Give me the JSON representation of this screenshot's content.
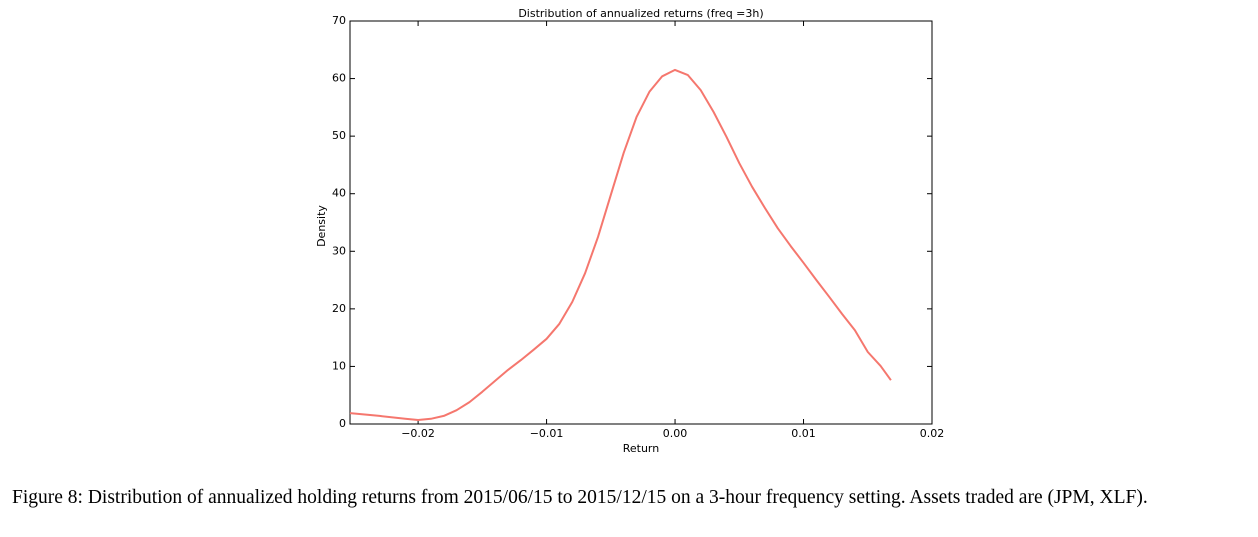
{
  "chart_data": {
    "type": "line",
    "title": "Distribution of annualized returns (freq =3h)",
    "x_label": "Return",
    "y_label": "Density",
    "x": [
      -0.0253,
      -0.023,
      -0.021,
      -0.02,
      -0.019,
      -0.018,
      -0.017,
      -0.016,
      -0.015,
      -0.014,
      -0.013,
      -0.012,
      -0.011,
      -0.01,
      -0.009,
      -0.008,
      -0.007,
      -0.006,
      -0.005,
      -0.004,
      -0.003,
      -0.002,
      -0.001,
      0,
      0.001,
      0.002,
      0.003,
      0.004,
      0.005,
      0.006,
      0.007,
      0.008,
      0.009,
      0.01,
      0.011,
      0.012,
      0.013,
      0.014,
      0.015,
      0.016,
      0.0168
    ],
    "series": [
      {
        "color": "#f5776e",
        "values": [
          1.9,
          1.4,
          0.9,
          0.7,
          0.9,
          1.4,
          2.4,
          3.8,
          5.6,
          7.5,
          9.4,
          11.1,
          12.9,
          14.8,
          17.4,
          21.2,
          26.2,
          32.5,
          39.8,
          47.1,
          53.3,
          57.7,
          60.4,
          61.5,
          60.6,
          58.0,
          54.2,
          49.9,
          45.3,
          41.2,
          37.5,
          34.0,
          30.9,
          28.0,
          25.0,
          22.1,
          19.1,
          16.3,
          12.5,
          10.1,
          7.6
        ]
      }
    ],
    "xlim": [
      -0.0253,
      0.02
    ],
    "xticks": [
      {
        "value": -0.02,
        "label": "−0.02"
      },
      {
        "value": -0.01,
        "label": "−0.01"
      },
      {
        "value": 0,
        "label": "0.00"
      },
      0.01,
      0.02
    ],
    "ylim": [
      0,
      70
    ],
    "yticks": [
      0,
      10,
      20,
      30,
      40,
      50,
      60,
      70
    ],
    "caption": "Figure 8: Distribution of annualized holding returns from 2015/06/15 to 2015/12/15 on a 3-hour frequency setting. Assets traded are (JPM, XLF)."
  }
}
